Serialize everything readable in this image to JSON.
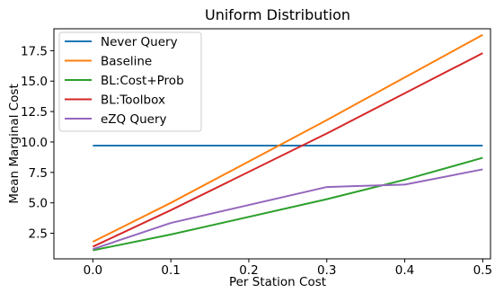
{
  "chart_data": {
    "type": "line",
    "title": "Uniform Distribution",
    "xlabel": "Per Station Cost",
    "ylabel": "Mean Marginal Cost",
    "x": [
      0.0,
      0.1,
      0.3,
      0.4,
      0.5
    ],
    "x_ticks": [
      0.0,
      0.1,
      0.2,
      0.3,
      0.4,
      0.5
    ],
    "x_tick_labels": [
      "0.0",
      "0.1",
      "0.2",
      "0.3",
      "0.4",
      "0.5"
    ],
    "y_ticks": [
      2.5,
      5.0,
      7.5,
      10.0,
      12.5,
      15.0,
      17.5
    ],
    "y_tick_labels": [
      "2.5",
      "5.0",
      "7.5",
      "10.0",
      "12.5",
      "15.0",
      "17.5"
    ],
    "xlim": [
      -0.05,
      0.51
    ],
    "ylim": [
      0.4,
      19.3
    ],
    "grid": false,
    "legend_position": "top-left",
    "series": [
      {
        "name": "Never Query",
        "color": "#1f77b4",
        "values": [
          9.7,
          9.7,
          9.7,
          9.7,
          9.7
        ]
      },
      {
        "name": "Baseline",
        "color": "#ff7f0e",
        "values": [
          1.8,
          5.0,
          11.8,
          15.3,
          18.8
        ]
      },
      {
        "name": "BL:Cost+Prob",
        "color": "#2ca02c",
        "values": [
          1.1,
          2.4,
          5.3,
          6.9,
          8.7
        ]
      },
      {
        "name": "BL:Toolbox",
        "color": "#d62728",
        "values": [
          1.4,
          4.4,
          10.7,
          14.0,
          17.3
        ]
      },
      {
        "name": "eZQ Query",
        "color": "#9467bd",
        "values": [
          1.2,
          3.35,
          6.3,
          6.5,
          7.75
        ]
      }
    ]
  }
}
